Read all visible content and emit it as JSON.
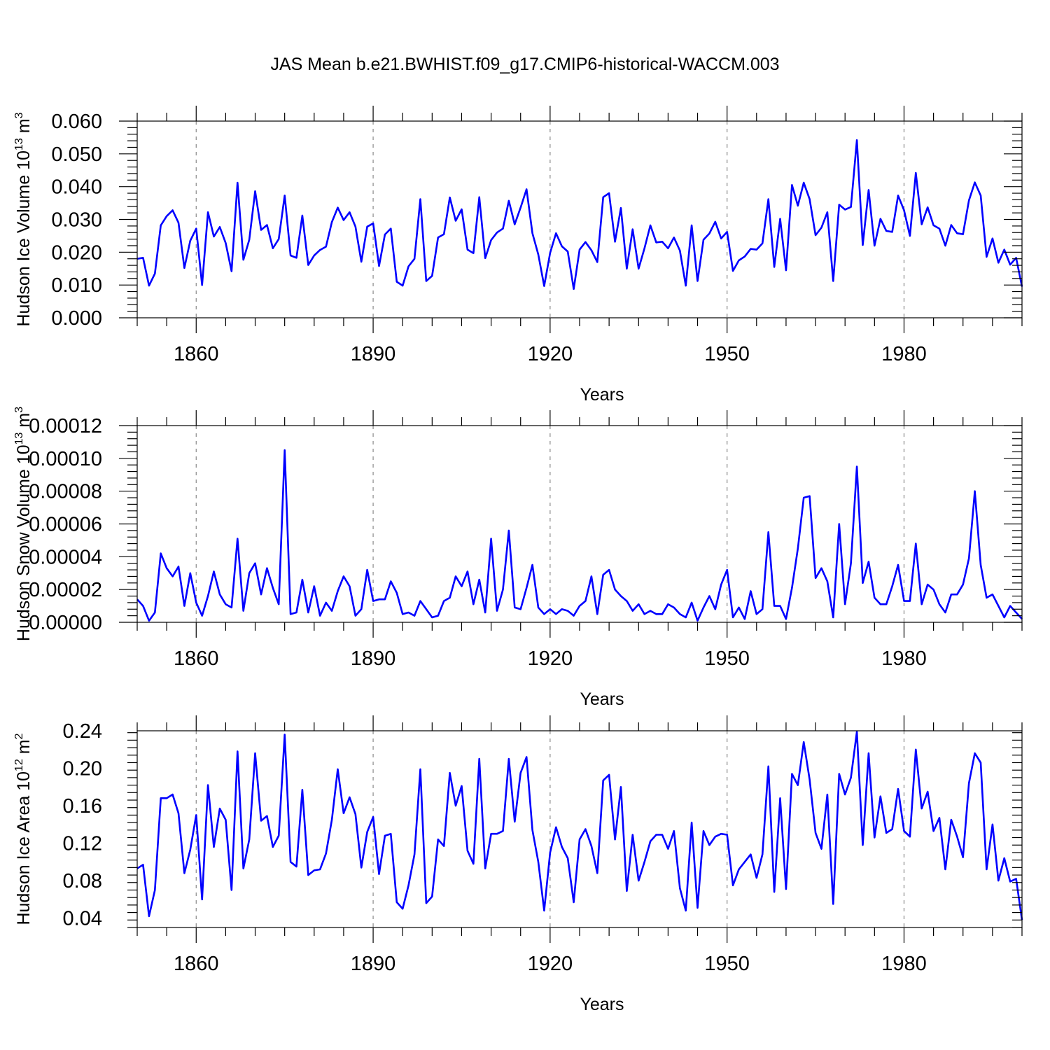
{
  "title": "JAS Mean b.e21.BWHIST.f09_g17.CMIP6-historical-WACCM.003",
  "colors": {
    "line": "#0000ff",
    "axis": "#000000",
    "grid": "#888888"
  },
  "chart_data": [
    {
      "type": "line",
      "ylabel": "Hudson Ice Volume 10",
      "ylabel_exp": "13",
      "ylabel_unit": " m",
      "ylabel_unit_exp": "3",
      "xlabel": "Years",
      "xlim": [
        1850,
        2000
      ],
      "ylim": [
        0.0,
        0.06
      ],
      "yticks": [
        0.0,
        0.01,
        0.02,
        0.03,
        0.04,
        0.05,
        0.06
      ],
      "ytick_labels": [
        "0.000",
        "0.010",
        "0.020",
        "0.030",
        "0.040",
        "0.050",
        "0.060"
      ],
      "xticks": [
        1860,
        1890,
        1920,
        1950,
        1980
      ],
      "xtick_labels": [
        "1860",
        "1890",
        "1920",
        "1950",
        "1980"
      ],
      "x_start": 1850,
      "values": [
        0.018,
        0.0183,
        0.0098,
        0.0135,
        0.0282,
        0.031,
        0.0328,
        0.029,
        0.0152,
        0.0235,
        0.0272,
        0.01,
        0.0322,
        0.0248,
        0.0277,
        0.0228,
        0.0142,
        0.0412,
        0.0177,
        0.0238,
        0.0386,
        0.0268,
        0.0283,
        0.0212,
        0.024,
        0.0373,
        0.019,
        0.0183,
        0.0312,
        0.0161,
        0.019,
        0.0207,
        0.0217,
        0.0292,
        0.0336,
        0.0298,
        0.0322,
        0.0278,
        0.0171,
        0.0278,
        0.0288,
        0.0158,
        0.0254,
        0.0272,
        0.011,
        0.0098,
        0.0157,
        0.018,
        0.0362,
        0.0112,
        0.0128,
        0.0245,
        0.0255,
        0.0367,
        0.0296,
        0.0331,
        0.0208,
        0.0197,
        0.0368,
        0.0182,
        0.0237,
        0.026,
        0.0272,
        0.0357,
        0.0285,
        0.0336,
        0.0392,
        0.0258,
        0.0193,
        0.0097,
        0.0198,
        0.0258,
        0.0218,
        0.0202,
        0.0088,
        0.0208,
        0.0231,
        0.0206,
        0.017,
        0.0368,
        0.038,
        0.0232,
        0.0335,
        0.015,
        0.027,
        0.015,
        0.0212,
        0.0282,
        0.023,
        0.0232,
        0.0212,
        0.0245,
        0.0205,
        0.0098,
        0.0282,
        0.0112,
        0.0238,
        0.0257,
        0.0293,
        0.0242,
        0.0262,
        0.0143,
        0.0175,
        0.0187,
        0.021,
        0.0208,
        0.0227,
        0.0362,
        0.0155,
        0.0302,
        0.0145,
        0.0405,
        0.0342,
        0.0412,
        0.0362,
        0.0252,
        0.0275,
        0.0322,
        0.0112,
        0.0345,
        0.033,
        0.0338,
        0.0542,
        0.0222,
        0.039,
        0.022,
        0.0302,
        0.0265,
        0.0262,
        0.0373,
        0.0328,
        0.025,
        0.0442,
        0.0285,
        0.0337,
        0.0282,
        0.0272,
        0.022,
        0.0283,
        0.0258,
        0.0255,
        0.0358,
        0.0413,
        0.0373,
        0.0186,
        0.0242,
        0.0168,
        0.0208,
        0.0162,
        0.0183,
        0.0095
      ]
    },
    {
      "type": "line",
      "ylabel": "Hudson Snow Volume 10",
      "ylabel_exp": "13",
      "ylabel_unit": " m",
      "ylabel_unit_exp": "3",
      "xlabel": "Years",
      "xlim": [
        1850,
        2000
      ],
      "ylim": [
        0.0,
        0.00012
      ],
      "yticks": [
        0.0,
        2e-05,
        4e-05,
        6e-05,
        8e-05,
        0.0001,
        0.00012
      ],
      "ytick_labels": [
        "0.00000",
        "0.00002",
        "0.00004",
        "0.00006",
        "0.00008",
        "0.00010",
        "0.00012"
      ],
      "xticks": [
        1860,
        1890,
        1920,
        1950,
        1980
      ],
      "xtick_labels": [
        "1860",
        "1890",
        "1920",
        "1950",
        "1980"
      ],
      "x_start": 1850,
      "values": [
        1.4e-05,
        1e-05,
        1e-06,
        6e-06,
        4.2e-05,
        3.3e-05,
        2.8e-05,
        3.4e-05,
        1e-05,
        3e-05,
        1.2e-05,
        4e-06,
        1.6e-05,
        3.1e-05,
        1.7e-05,
        1.1e-05,
        9e-06,
        5.1e-05,
        7e-06,
        3e-05,
        3.6e-05,
        1.7e-05,
        3.3e-05,
        2.1e-05,
        1.1e-05,
        0.000105,
        5e-06,
        6e-06,
        2.6e-05,
        6e-06,
        2.2e-05,
        4e-06,
        1.2e-05,
        7e-06,
        1.9e-05,
        2.8e-05,
        2.2e-05,
        4e-06,
        8e-06,
        3.2e-05,
        1.3e-05,
        1.4e-05,
        1.4e-05,
        2.5e-05,
        1.8e-05,
        5e-06,
        6e-06,
        4e-06,
        1.3e-05,
        8e-06,
        3e-06,
        4e-06,
        1.3e-05,
        1.5e-05,
        2.8e-05,
        2.2e-05,
        3.1e-05,
        1.1e-05,
        2.6e-05,
        6e-06,
        5.1e-05,
        7e-06,
        2e-05,
        5.6e-05,
        9e-06,
        8e-06,
        2.1e-05,
        3.5e-05,
        9e-06,
        5e-06,
        8e-06,
        5e-06,
        8e-06,
        7e-06,
        4e-06,
        1e-05,
        1.3e-05,
        2.8e-05,
        5e-06,
        2.9e-05,
        3.2e-05,
        2e-05,
        1.6e-05,
        1.3e-05,
        7e-06,
        1.1e-05,
        5e-06,
        7e-06,
        5e-06,
        5e-06,
        1.1e-05,
        9e-06,
        5e-06,
        3e-06,
        1.2e-05,
        1e-06,
        9e-06,
        1.6e-05,
        8e-06,
        2.3e-05,
        3.2e-05,
        3e-06,
        9e-06,
        2e-06,
        1.9e-05,
        5e-06,
        8e-06,
        5.5e-05,
        1e-05,
        1e-05,
        2e-06,
        2.1e-05,
        4.5e-05,
        7.6e-05,
        7.7e-05,
        2.7e-05,
        3.3e-05,
        2.5e-05,
        3e-06,
        6e-05,
        1.1e-05,
        3.6e-05,
        9.5e-05,
        2.4e-05,
        3.7e-05,
        1.5e-05,
        1.1e-05,
        1.1e-05,
        2.2e-05,
        3.5e-05,
        1.3e-05,
        1.3e-05,
        4.8e-05,
        1.1e-05,
        2.3e-05,
        2e-05,
        1.1e-05,
        6e-06,
        1.7e-05,
        1.7e-05,
        2.3e-05,
        3.9e-05,
        8e-05,
        3.5e-05,
        1.5e-05,
        1.7e-05,
        1e-05,
        3e-06,
        1e-05,
        6e-06,
        2e-06
      ]
    },
    {
      "type": "line",
      "ylabel": "Hudson Ice Area 10",
      "ylabel_exp": "12",
      "ylabel_unit": " m",
      "ylabel_unit_exp": "2",
      "xlabel": "Years",
      "xlim": [
        1850,
        2000
      ],
      "ylim": [
        0.03,
        0.24
      ],
      "yticks": [
        0.04,
        0.08,
        0.12,
        0.16,
        0.2,
        0.24
      ],
      "ytick_labels": [
        "0.04",
        "0.08",
        "0.12",
        "0.16",
        "0.20",
        "0.24"
      ],
      "xticks": [
        1860,
        1890,
        1920,
        1950,
        1980
      ],
      "xtick_labels": [
        "1860",
        "1890",
        "1920",
        "1950",
        "1980"
      ],
      "x_start": 1850,
      "values": [
        0.093,
        0.097,
        0.042,
        0.07,
        0.168,
        0.168,
        0.172,
        0.152,
        0.088,
        0.113,
        0.15,
        0.06,
        0.182,
        0.116,
        0.157,
        0.145,
        0.07,
        0.218,
        0.093,
        0.124,
        0.216,
        0.144,
        0.149,
        0.116,
        0.128,
        0.236,
        0.1,
        0.095,
        0.177,
        0.086,
        0.091,
        0.092,
        0.109,
        0.145,
        0.199,
        0.152,
        0.169,
        0.151,
        0.094,
        0.132,
        0.148,
        0.087,
        0.128,
        0.13,
        0.057,
        0.05,
        0.075,
        0.108,
        0.199,
        0.056,
        0.063,
        0.124,
        0.117,
        0.195,
        0.16,
        0.181,
        0.112,
        0.098,
        0.21,
        0.093,
        0.13,
        0.13,
        0.133,
        0.21,
        0.143,
        0.195,
        0.212,
        0.134,
        0.1,
        0.048,
        0.11,
        0.137,
        0.116,
        0.104,
        0.057,
        0.124,
        0.135,
        0.117,
        0.088,
        0.187,
        0.193,
        0.124,
        0.18,
        0.069,
        0.129,
        0.08,
        0.1,
        0.122,
        0.129,
        0.129,
        0.114,
        0.133,
        0.072,
        0.048,
        0.142,
        0.051,
        0.133,
        0.118,
        0.127,
        0.13,
        0.129,
        0.075,
        0.092,
        0.1,
        0.108,
        0.083,
        0.108,
        0.202,
        0.068,
        0.168,
        0.071,
        0.194,
        0.182,
        0.228,
        0.188,
        0.131,
        0.114,
        0.172,
        0.055,
        0.194,
        0.172,
        0.19,
        0.239,
        0.118,
        0.216,
        0.126,
        0.17,
        0.131,
        0.135,
        0.178,
        0.133,
        0.127,
        0.22,
        0.157,
        0.175,
        0.133,
        0.147,
        0.092,
        0.145,
        0.127,
        0.105,
        0.184,
        0.216,
        0.206,
        0.092,
        0.14,
        0.08,
        0.104,
        0.079,
        0.082,
        0.038
      ]
    }
  ]
}
